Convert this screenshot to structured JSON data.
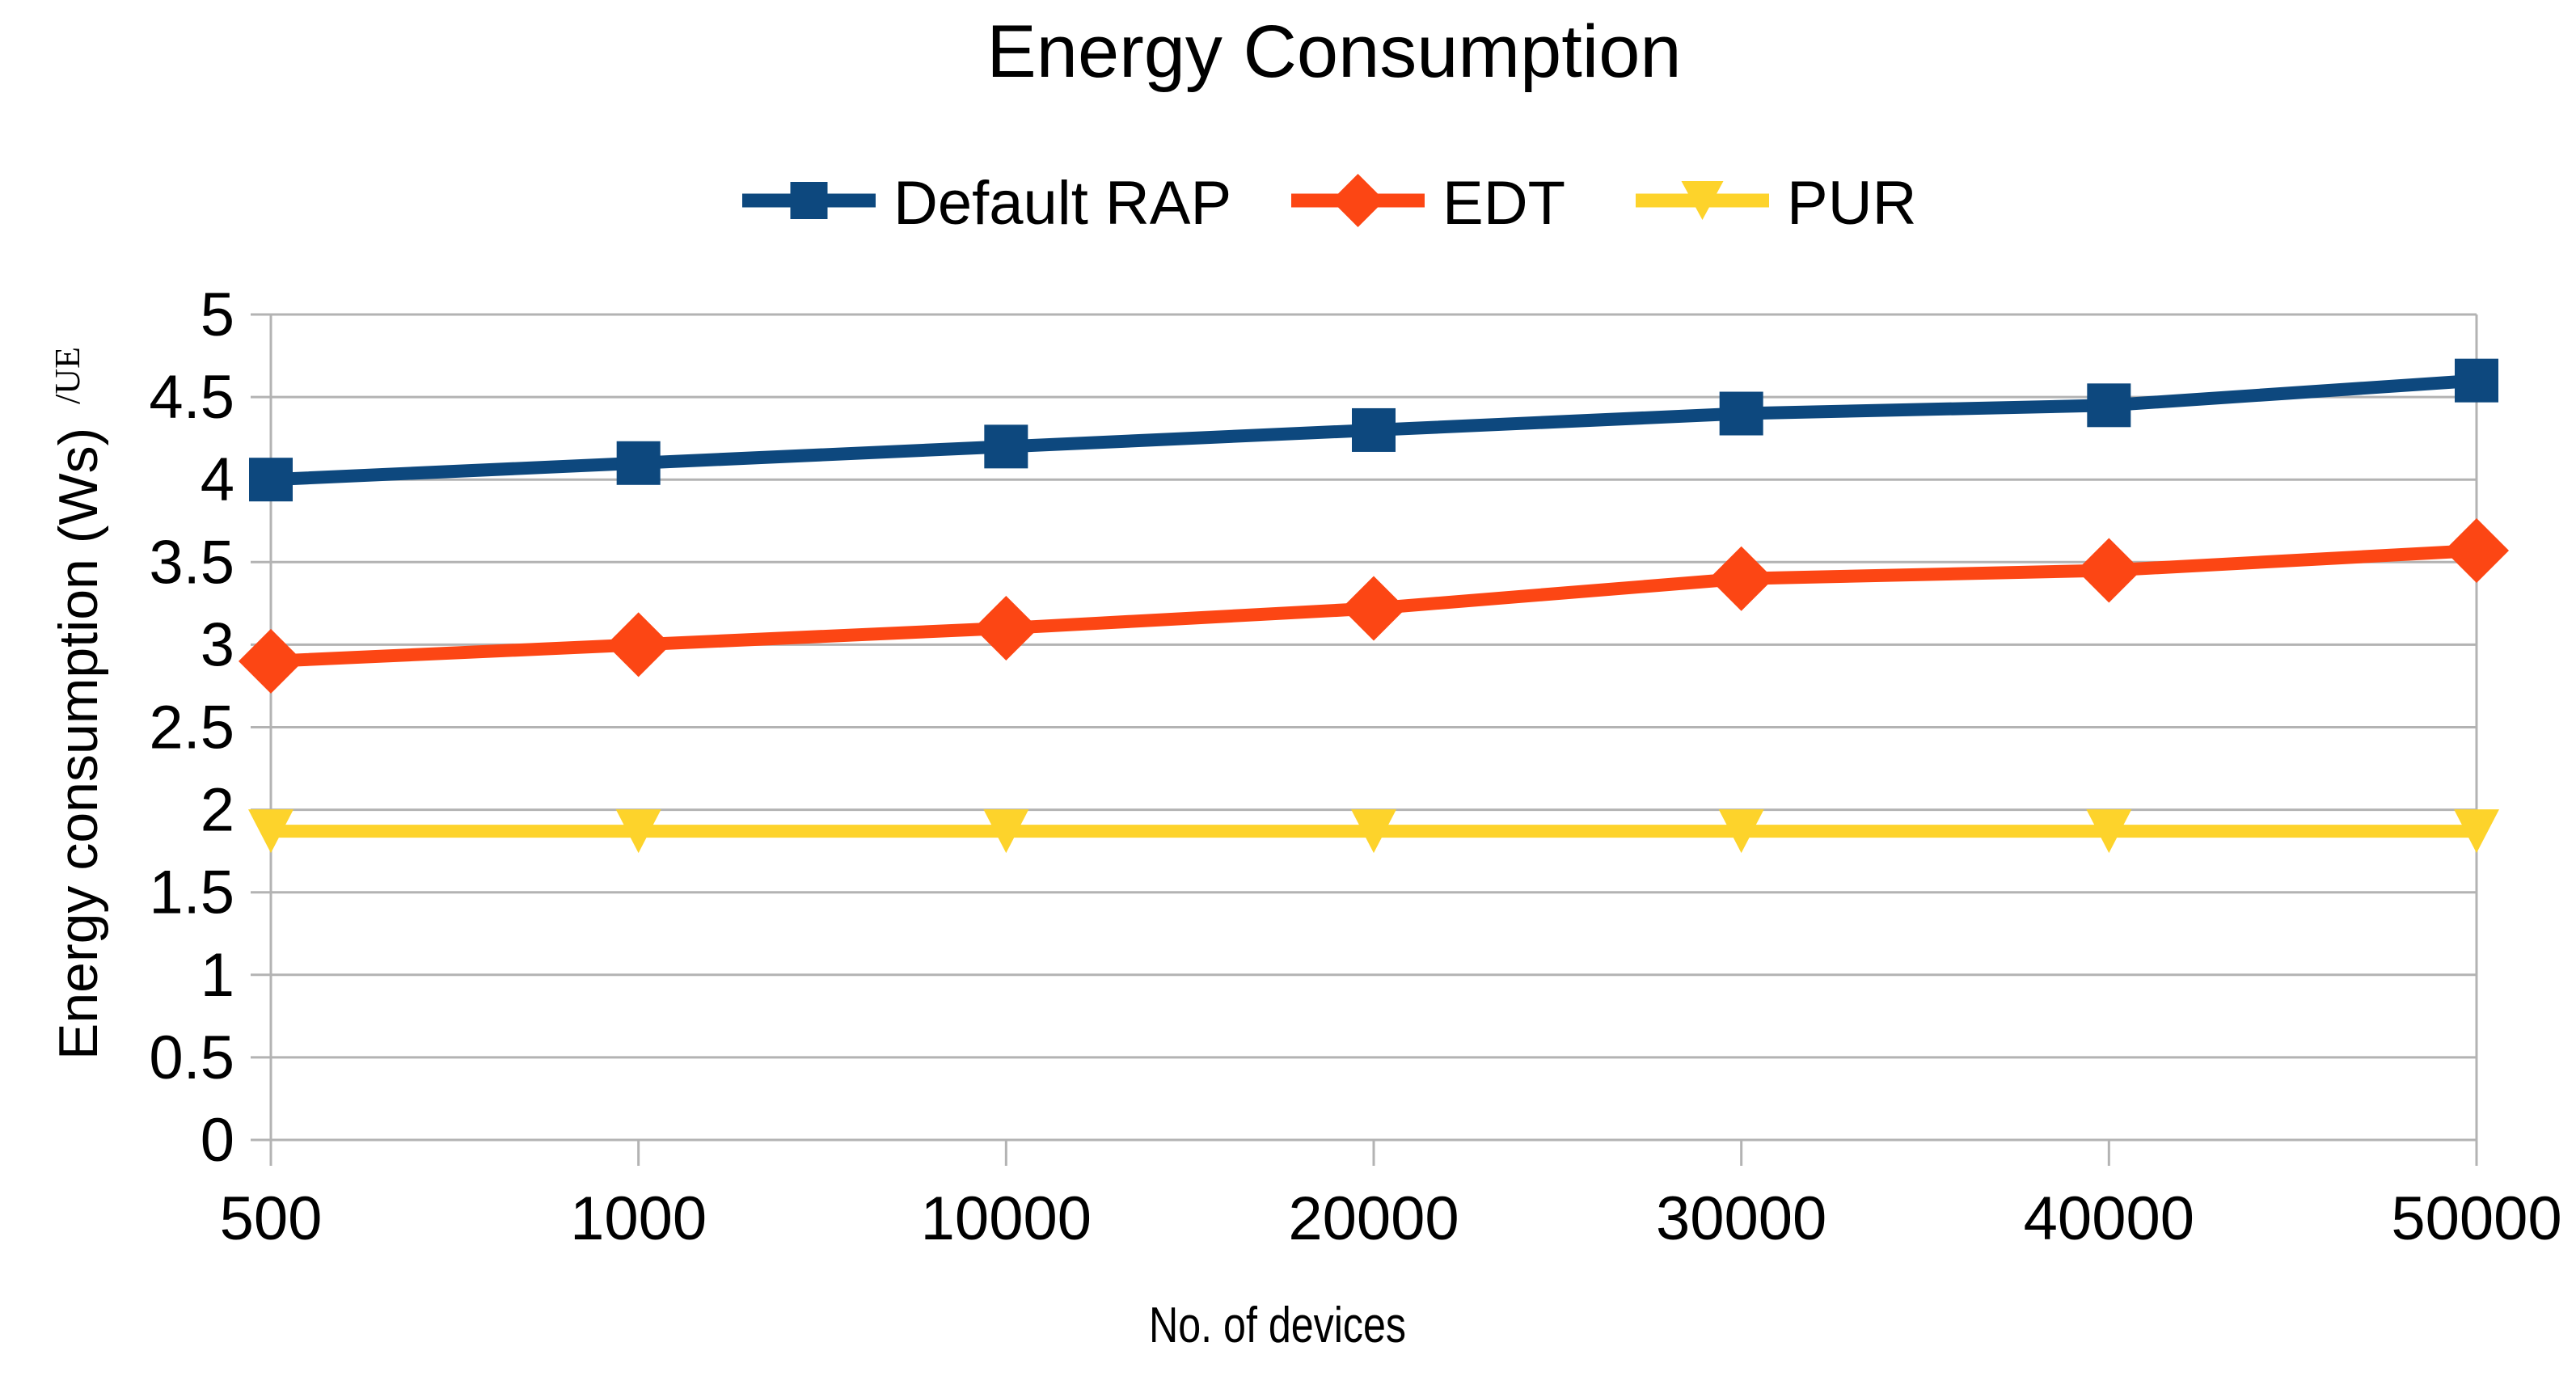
{
  "chart_data": {
    "type": "line",
    "title": "Energy Consumption",
    "xlabel": "No. of devices",
    "ylabel": "Energy consumption (Ws)",
    "ylabel_superscript": "/UE",
    "categories": [
      "500",
      "1000",
      "10000",
      "20000",
      "30000",
      "40000",
      "50000"
    ],
    "series": [
      {
        "name": "Default RAP",
        "color": "#0d487e",
        "marker": "square",
        "values": [
          4.0,
          4.1,
          4.2,
          4.3,
          4.4,
          4.45,
          4.6
        ]
      },
      {
        "name": "EDT",
        "color": "#fc4614",
        "marker": "diamond",
        "values": [
          2.9,
          3.0,
          3.1,
          3.22,
          3.4,
          3.45,
          3.57
        ]
      },
      {
        "name": "PUR",
        "color": "#fdd32b",
        "marker": "triangle-down",
        "values": [
          1.87,
          1.87,
          1.87,
          1.87,
          1.87,
          1.87,
          1.87
        ]
      }
    ],
    "ylim": [
      0,
      5
    ],
    "y_tick_step": 0.5,
    "y_ticks": [
      "0",
      "0.5",
      "1",
      "1.5",
      "2",
      "2.5",
      "3",
      "3.5",
      "4",
      "4.5",
      "5"
    ],
    "grid": "horizontal",
    "grid_color": "#b3b3b3",
    "axis_color": "#b3b3b3",
    "text_color": "#000000",
    "legend_position": "top"
  }
}
